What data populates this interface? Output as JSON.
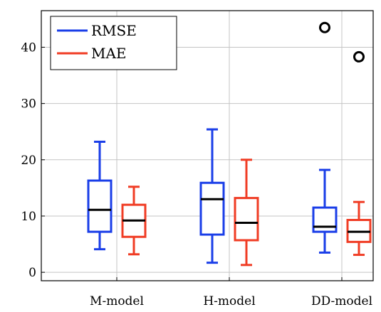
{
  "chart_data": {
    "type": "box",
    "title": "",
    "xlabel": "",
    "ylabel": "",
    "categories": [
      "M-model",
      "H-model",
      "DD-model"
    ],
    "yticks": [
      0,
      10,
      20,
      30,
      40
    ],
    "ylim": [
      -1.5,
      46.5
    ],
    "grid": true,
    "legend_position": "top-left",
    "series": [
      {
        "name": "RMSE",
        "color": "#1a3ee8",
        "boxes": [
          {
            "whisker_low": 4.1,
            "q1": 7.2,
            "median": 11.1,
            "q3": 16.3,
            "whisker_high": 23.2,
            "outliers": []
          },
          {
            "whisker_low": 1.7,
            "q1": 6.7,
            "median": 13.0,
            "q3": 15.9,
            "whisker_high": 25.4,
            "outliers": []
          },
          {
            "whisker_low": 3.5,
            "q1": 7.2,
            "median": 8.1,
            "q3": 11.5,
            "whisker_high": 18.2,
            "outliers": [
              43.5
            ]
          }
        ]
      },
      {
        "name": "MAE",
        "color": "#f03c24",
        "boxes": [
          {
            "whisker_low": 3.2,
            "q1": 6.3,
            "median": 9.2,
            "q3": 12.0,
            "whisker_high": 15.2,
            "outliers": []
          },
          {
            "whisker_low": 1.3,
            "q1": 5.7,
            "median": 8.8,
            "q3": 13.2,
            "whisker_high": 20.0,
            "outliers": []
          },
          {
            "whisker_low": 3.1,
            "q1": 5.4,
            "median": 7.2,
            "q3": 9.3,
            "whisker_high": 12.5,
            "outliers": [
              38.3
            ]
          }
        ]
      }
    ]
  }
}
